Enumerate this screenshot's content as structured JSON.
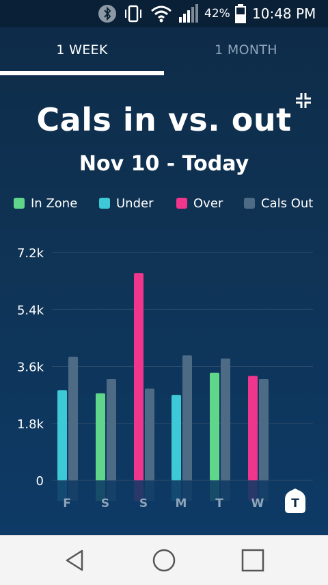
{
  "status_bar": {
    "battery_percent": "42%",
    "time": "10:48 PM",
    "icons": [
      "bluetooth-icon",
      "vibrate-icon",
      "wifi-icon",
      "signal-icon",
      "battery-icon"
    ]
  },
  "tabs": [
    {
      "label": "1 WEEK",
      "active": true
    },
    {
      "label": "1 MONTH",
      "active": false
    }
  ],
  "header": {
    "title": "Cals in vs. out",
    "subtitle": "Nov 10 - Today"
  },
  "legend": [
    {
      "label": "In Zone",
      "color": "#5fd68a"
    },
    {
      "label": "Under",
      "color": "#3ec9d6"
    },
    {
      "label": "Over",
      "color": "#f0358d"
    },
    {
      "label": "Cals Out",
      "color": "#4e6b86"
    }
  ],
  "chart_data": {
    "type": "bar",
    "title": "Cals in vs. out",
    "subtitle": "Nov 10 - Today",
    "categories": [
      "F",
      "S",
      "S",
      "M",
      "T",
      "W",
      "T"
    ],
    "highlighted_category_index": 6,
    "y_tick_labels": [
      "0",
      "1.8k",
      "3.6k",
      "5.4k",
      "7.2k"
    ],
    "y_ticks": [
      0,
      1800,
      3600,
      5400,
      7200
    ],
    "ylim": [
      0,
      7200
    ],
    "grid": true,
    "legend_position": "top",
    "series": [
      {
        "name": "Cals In",
        "values": [
          2850,
          2750,
          6550,
          2700,
          3400,
          3300,
          null
        ],
        "status": [
          "Under",
          "In Zone",
          "Over",
          "Under",
          "In Zone",
          "Over",
          null
        ]
      },
      {
        "name": "Cals Out",
        "values": [
          3900,
          3200,
          2900,
          3950,
          3850,
          3200,
          null
        ]
      }
    ]
  },
  "nav_bar": {
    "buttons": [
      "back-icon",
      "home-icon",
      "recents-icon"
    ]
  }
}
